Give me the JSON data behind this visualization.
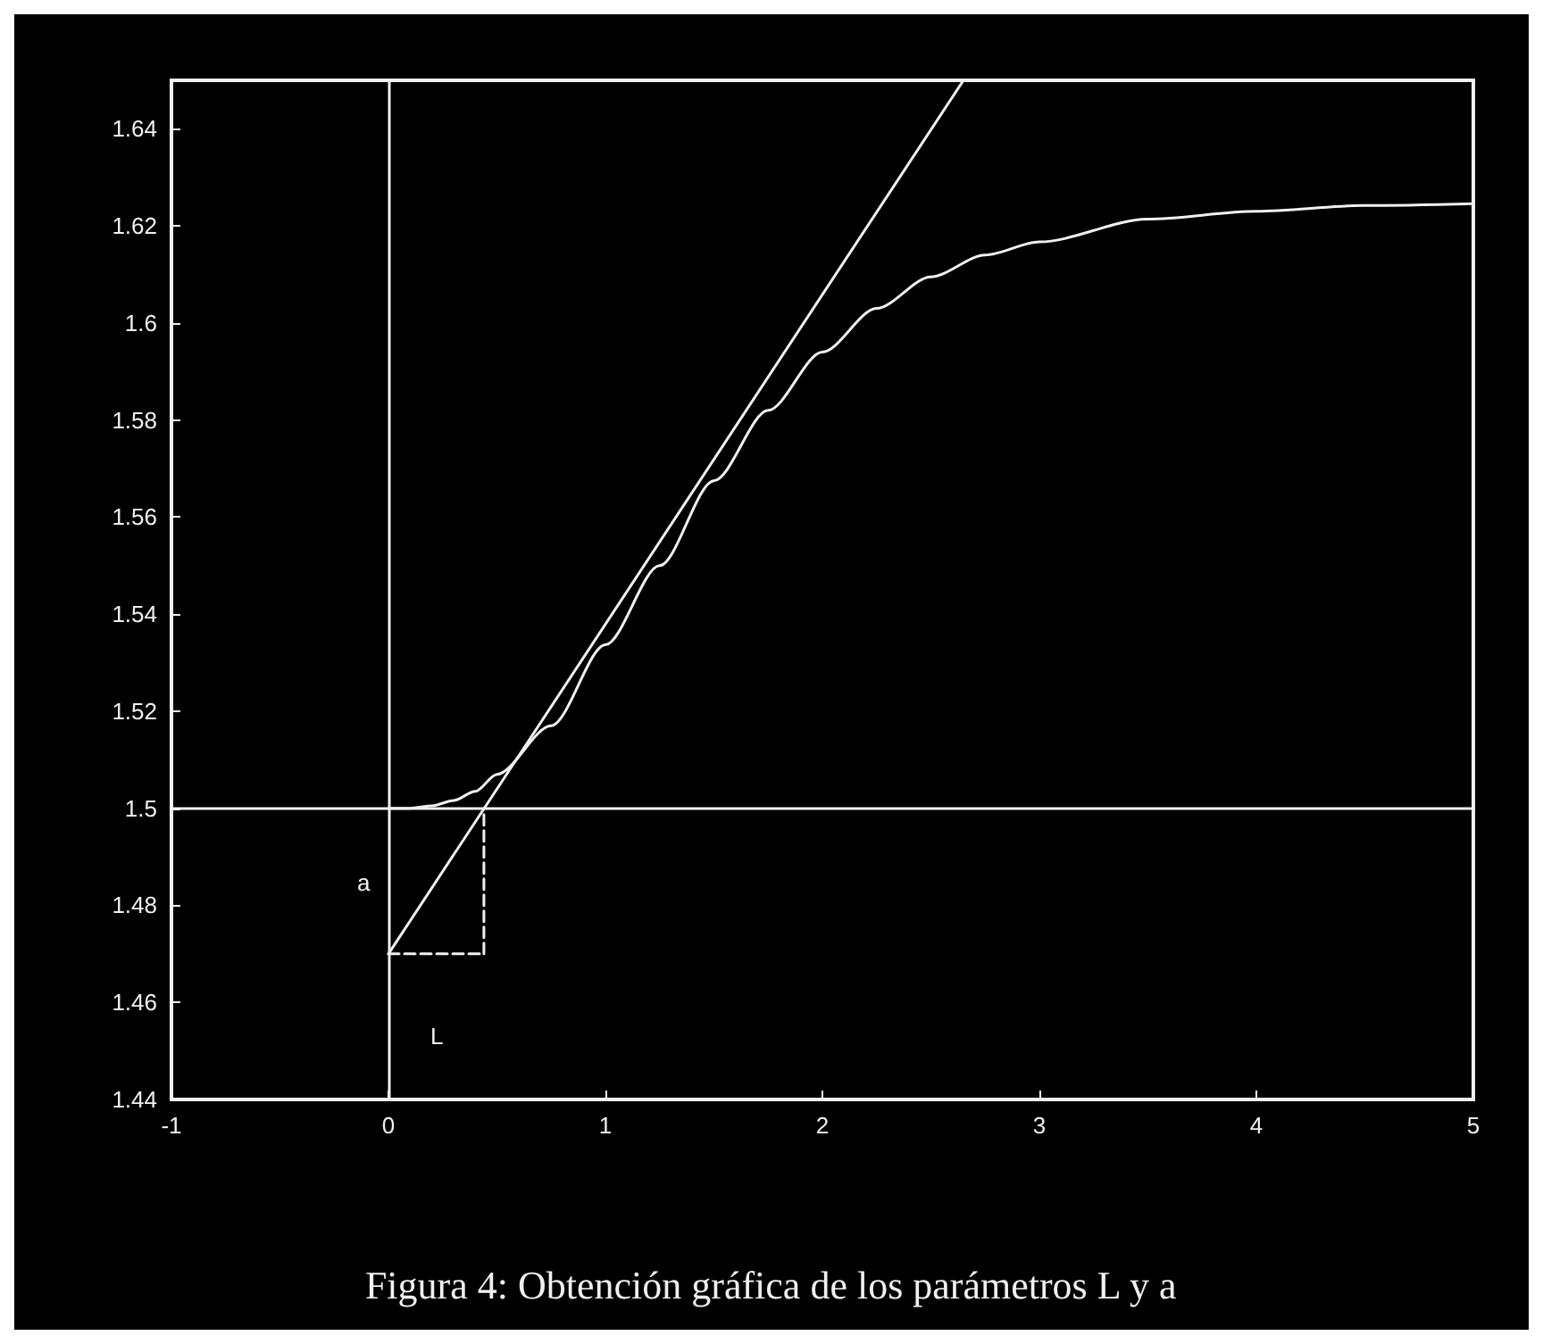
{
  "chart_data": {
    "type": "line",
    "marker": "none",
    "xlim": [
      -1,
      5
    ],
    "xticks": [
      -1,
      0,
      1,
      2,
      3,
      4,
      5
    ],
    "ylim": [
      1.44,
      1.65
    ],
    "yticks": [
      1.44,
      1.46,
      1.48,
      1.5,
      1.52,
      1.54,
      1.56,
      1.58,
      1.6,
      1.62,
      1.64
    ],
    "series": [
      {
        "color": "#f0f0f0",
        "line_style": "solid",
        "x": [
          0,
          0.1,
          0.2,
          0.3,
          0.4,
          0.5,
          0.75,
          1,
          1.25,
          1.5,
          1.75,
          2,
          2.25,
          2.5,
          2.75,
          3,
          3.5,
          4,
          4.5,
          5
        ],
        "values": [
          1.5,
          1.5,
          1.5005,
          1.5016,
          1.5035,
          1.507,
          1.517,
          1.5337,
          1.55,
          1.5675,
          1.582,
          1.594,
          1.603,
          1.6095,
          1.614,
          1.6167,
          1.6214,
          1.623,
          1.6242,
          1.6246
        ]
      },
      {
        "color": "#f0f0f0",
        "line_style": "solid",
        "x": [
          0,
          2.65
        ],
        "values": [
          1.47,
          1.65
        ]
      },
      {
        "color": "#f0f0f0",
        "line_style": "dashed",
        "x": [
          0,
          0.44
        ],
        "values": [
          1.47,
          1.47
        ]
      },
      {
        "color": "#f0f0f0",
        "line_style": "dashed",
        "x": [
          0.44,
          0.44
        ],
        "values": [
          1.47,
          1.5
        ]
      }
    ],
    "ref_lines": [
      {
        "axis": "y",
        "value": 1.5,
        "color": "#f0f0f0"
      },
      {
        "axis": "x",
        "value": 0,
        "color": "#f0f0f0"
      }
    ],
    "annotations": [
      "a",
      "L",
      "Figura 4: Obtención gráfica de los parámetros L y a"
    ]
  }
}
